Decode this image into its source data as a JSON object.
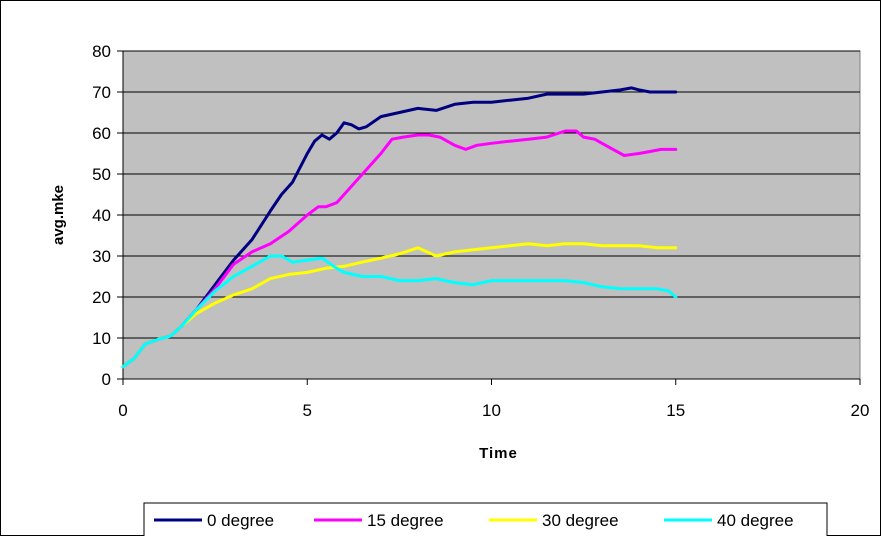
{
  "chart_data": {
    "type": "line",
    "title": "",
    "xlabel": "Time",
    "ylabel": "avg.mke",
    "xlim": [
      0,
      20
    ],
    "ylim": [
      0,
      80
    ],
    "xticks": [
      0,
      5,
      10,
      15,
      20
    ],
    "yticks": [
      0,
      10,
      20,
      30,
      40,
      50,
      60,
      70,
      80
    ],
    "grid": "horizontal",
    "plot_background": "#c0c0c0",
    "legend_position": "bottom",
    "series": [
      {
        "name": "0 degree",
        "color": "#000080",
        "points": [
          [
            0,
            3
          ],
          [
            0.3,
            5
          ],
          [
            0.6,
            8.5
          ],
          [
            1,
            9.8
          ],
          [
            1.3,
            10.5
          ],
          [
            1.6,
            13
          ],
          [
            2,
            17
          ],
          [
            2.5,
            23
          ],
          [
            3,
            29
          ],
          [
            3.5,
            34
          ],
          [
            4,
            41
          ],
          [
            4.3,
            45
          ],
          [
            4.6,
            48
          ],
          [
            5,
            55
          ],
          [
            5.2,
            58
          ],
          [
            5.4,
            59.5
          ],
          [
            5.6,
            58.5
          ],
          [
            5.8,
            60
          ],
          [
            6,
            62.5
          ],
          [
            6.2,
            62
          ],
          [
            6.4,
            61
          ],
          [
            6.6,
            61.5
          ],
          [
            7,
            64
          ],
          [
            7.5,
            65
          ],
          [
            8,
            66
          ],
          [
            8.5,
            65.5
          ],
          [
            9,
            67
          ],
          [
            9.5,
            67.5
          ],
          [
            10,
            67.5
          ],
          [
            10.5,
            68
          ],
          [
            11,
            68.5
          ],
          [
            11.5,
            69.5
          ],
          [
            12,
            69.5
          ],
          [
            12.5,
            69.5
          ],
          [
            13,
            70
          ],
          [
            13.5,
            70.5
          ],
          [
            13.8,
            71
          ],
          [
            14,
            70.5
          ],
          [
            14.3,
            70
          ],
          [
            14.6,
            70
          ],
          [
            15,
            70
          ]
        ]
      },
      {
        "name": "15 degree",
        "color": "#ff00ff",
        "points": [
          [
            0,
            3
          ],
          [
            0.3,
            5
          ],
          [
            0.6,
            8.5
          ],
          [
            1,
            9.8
          ],
          [
            1.3,
            10.5
          ],
          [
            1.6,
            13
          ],
          [
            2,
            17
          ],
          [
            2.5,
            22
          ],
          [
            3,
            28
          ],
          [
            3.5,
            31
          ],
          [
            4,
            33
          ],
          [
            4.5,
            36
          ],
          [
            5,
            40
          ],
          [
            5.3,
            42
          ],
          [
            5.5,
            42
          ],
          [
            5.8,
            43
          ],
          [
            6,
            45
          ],
          [
            6.5,
            50
          ],
          [
            7,
            55
          ],
          [
            7.3,
            58.5
          ],
          [
            7.6,
            59
          ],
          [
            8,
            59.5
          ],
          [
            8.3,
            59.5
          ],
          [
            8.6,
            59
          ],
          [
            9,
            57
          ],
          [
            9.3,
            56
          ],
          [
            9.6,
            57
          ],
          [
            10,
            57.5
          ],
          [
            10.5,
            58
          ],
          [
            11,
            58.5
          ],
          [
            11.5,
            59
          ],
          [
            12,
            60.5
          ],
          [
            12.3,
            60.5
          ],
          [
            12.5,
            59
          ],
          [
            12.8,
            58.5
          ],
          [
            13,
            57.5
          ],
          [
            13.3,
            56
          ],
          [
            13.6,
            54.5
          ],
          [
            14,
            55
          ],
          [
            14.3,
            55.5
          ],
          [
            14.6,
            56
          ],
          [
            15,
            56
          ]
        ]
      },
      {
        "name": "30 degree",
        "color": "#ffff00",
        "points": [
          [
            0,
            3
          ],
          [
            0.3,
            5
          ],
          [
            0.6,
            8.5
          ],
          [
            1,
            9.8
          ],
          [
            1.3,
            10.5
          ],
          [
            1.6,
            13
          ],
          [
            2,
            16
          ],
          [
            2.5,
            18.5
          ],
          [
            3,
            20.5
          ],
          [
            3.5,
            22
          ],
          [
            4,
            24.5
          ],
          [
            4.5,
            25.5
          ],
          [
            5,
            26
          ],
          [
            5.5,
            27
          ],
          [
            6,
            27.5
          ],
          [
            6.5,
            28.5
          ],
          [
            7,
            29.5
          ],
          [
            7.5,
            30.5
          ],
          [
            8,
            32
          ],
          [
            8.5,
            30
          ],
          [
            9,
            31
          ],
          [
            9.5,
            31.5
          ],
          [
            10,
            32
          ],
          [
            10.5,
            32.5
          ],
          [
            11,
            33
          ],
          [
            11.5,
            32.5
          ],
          [
            12,
            33
          ],
          [
            12.5,
            33
          ],
          [
            13,
            32.5
          ],
          [
            13.5,
            32.5
          ],
          [
            14,
            32.5
          ],
          [
            14.5,
            32
          ],
          [
            15,
            32
          ]
        ]
      },
      {
        "name": "40 degree",
        "color": "#00ffff",
        "points": [
          [
            0,
            3
          ],
          [
            0.3,
            5
          ],
          [
            0.6,
            8.5
          ],
          [
            1,
            9.8
          ],
          [
            1.3,
            10.5
          ],
          [
            1.6,
            13
          ],
          [
            2,
            17
          ],
          [
            2.5,
            21.5
          ],
          [
            3,
            25
          ],
          [
            3.5,
            27.5
          ],
          [
            4,
            30
          ],
          [
            4.3,
            30
          ],
          [
            4.6,
            28.5
          ],
          [
            5,
            29
          ],
          [
            5.4,
            29.5
          ],
          [
            5.8,
            27
          ],
          [
            6,
            26
          ],
          [
            6.5,
            25
          ],
          [
            7,
            25
          ],
          [
            7.5,
            24
          ],
          [
            8,
            24
          ],
          [
            8.5,
            24.5
          ],
          [
            9,
            23.5
          ],
          [
            9.5,
            23
          ],
          [
            10,
            24
          ],
          [
            10.5,
            24
          ],
          [
            11,
            24
          ],
          [
            11.5,
            24
          ],
          [
            12,
            24
          ],
          [
            12.5,
            23.5
          ],
          [
            13,
            22.5
          ],
          [
            13.5,
            22
          ],
          [
            14,
            22
          ],
          [
            14.5,
            22
          ],
          [
            14.8,
            21.5
          ],
          [
            15,
            20
          ]
        ]
      }
    ]
  }
}
